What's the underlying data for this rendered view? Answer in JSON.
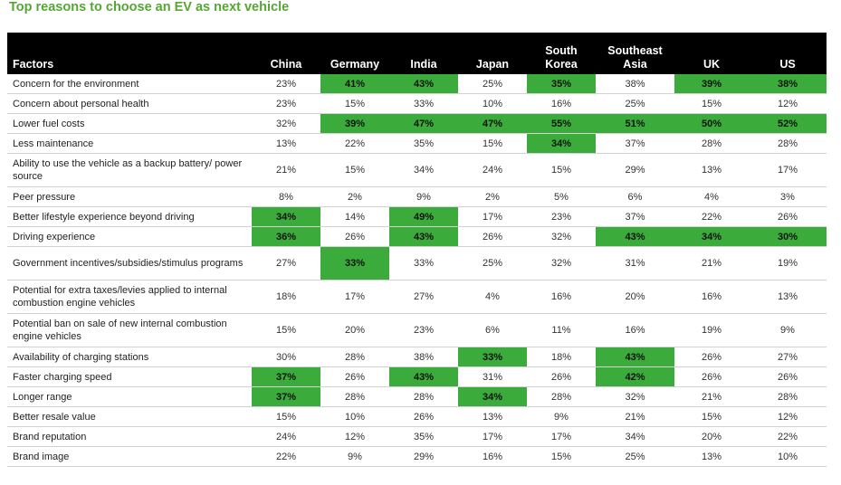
{
  "title": "Top reasons to choose an EV as next vehicle",
  "chart_data": {
    "type": "table",
    "title": "Top reasons to choose an EV as next vehicle",
    "row_header": "Factors",
    "columns": [
      "China",
      "Germany",
      "India",
      "Japan",
      "South Korea",
      "Southeast Asia",
      "UK",
      "US"
    ],
    "column_display": [
      [
        "China"
      ],
      [
        "Germany"
      ],
      [
        "India"
      ],
      [
        "Japan"
      ],
      [
        "South",
        "Korea"
      ],
      [
        "Southeast",
        "Asia"
      ],
      [
        "UK"
      ],
      [
        "US"
      ]
    ],
    "highlight_color": "#3bab3b",
    "rows": [
      {
        "factor": "Concern for the environment",
        "values": [
          "23%",
          "41%",
          "43%",
          "25%",
          "35%",
          "38%",
          "39%",
          "38%"
        ],
        "highlight": [
          false,
          true,
          true,
          false,
          true,
          false,
          true,
          true
        ]
      },
      {
        "factor": "Concern about personal health",
        "values": [
          "23%",
          "15%",
          "33%",
          "10%",
          "16%",
          "25%",
          "15%",
          "12%"
        ],
        "highlight": [
          false,
          false,
          false,
          false,
          false,
          false,
          false,
          false
        ]
      },
      {
        "factor": "Lower fuel costs",
        "values": [
          "32%",
          "39%",
          "47%",
          "47%",
          "55%",
          "51%",
          "50%",
          "52%"
        ],
        "highlight": [
          false,
          true,
          true,
          true,
          true,
          true,
          true,
          true
        ]
      },
      {
        "factor": "Less maintenance",
        "values": [
          "13%",
          "22%",
          "35%",
          "15%",
          "34%",
          "37%",
          "28%",
          "28%"
        ],
        "highlight": [
          false,
          false,
          false,
          false,
          true,
          false,
          false,
          false
        ]
      },
      {
        "factor": "Ability to use the vehicle as a backup battery/ power source",
        "values": [
          "21%",
          "15%",
          "34%",
          "24%",
          "15%",
          "29%",
          "13%",
          "17%"
        ],
        "highlight": [
          false,
          false,
          false,
          false,
          false,
          false,
          false,
          false
        ]
      },
      {
        "factor": "Peer pressure",
        "values": [
          "8%",
          "2%",
          "9%",
          "2%",
          "5%",
          "6%",
          "4%",
          "3%"
        ],
        "highlight": [
          false,
          false,
          false,
          false,
          false,
          false,
          false,
          false
        ]
      },
      {
        "factor": "Better lifestyle experience beyond driving",
        "values": [
          "34%",
          "14%",
          "49%",
          "17%",
          "23%",
          "37%",
          "22%",
          "26%"
        ],
        "highlight": [
          true,
          false,
          true,
          false,
          false,
          false,
          false,
          false
        ]
      },
      {
        "factor": "Driving experience",
        "values": [
          "36%",
          "26%",
          "43%",
          "26%",
          "32%",
          "43%",
          "34%",
          "30%"
        ],
        "highlight": [
          true,
          false,
          true,
          false,
          false,
          true,
          true,
          true
        ]
      },
      {
        "factor": "Government incentives/subsidies/stimulus programs",
        "values": [
          "27%",
          "33%",
          "33%",
          "25%",
          "32%",
          "31%",
          "21%",
          "19%"
        ],
        "highlight": [
          false,
          true,
          false,
          false,
          false,
          false,
          false,
          false
        ]
      },
      {
        "factor": "Potential for extra taxes/levies applied to internal combustion engine vehicles",
        "values": [
          "18%",
          "17%",
          "27%",
          "4%",
          "16%",
          "20%",
          "16%",
          "13%"
        ],
        "highlight": [
          false,
          false,
          false,
          false,
          false,
          false,
          false,
          false
        ]
      },
      {
        "factor": "Potential ban on sale of new internal combustion engine vehicles",
        "values": [
          "15%",
          "20%",
          "23%",
          "6%",
          "11%",
          "16%",
          "19%",
          "9%"
        ],
        "highlight": [
          false,
          false,
          false,
          false,
          false,
          false,
          false,
          false
        ]
      },
      {
        "factor": "Availability of charging stations",
        "values": [
          "30%",
          "28%",
          "38%",
          "33%",
          "18%",
          "43%",
          "26%",
          "27%"
        ],
        "highlight": [
          false,
          false,
          false,
          true,
          false,
          true,
          false,
          false
        ]
      },
      {
        "factor": "Faster charging speed",
        "values": [
          "37%",
          "26%",
          "43%",
          "31%",
          "26%",
          "42%",
          "26%",
          "26%"
        ],
        "highlight": [
          true,
          false,
          true,
          false,
          false,
          true,
          false,
          false
        ]
      },
      {
        "factor": "Longer range",
        "values": [
          "37%",
          "28%",
          "28%",
          "34%",
          "28%",
          "32%",
          "21%",
          "28%"
        ],
        "highlight": [
          true,
          false,
          false,
          true,
          false,
          false,
          false,
          false
        ]
      },
      {
        "factor": "Better resale value",
        "values": [
          "15%",
          "10%",
          "26%",
          "13%",
          "9%",
          "21%",
          "15%",
          "12%"
        ],
        "highlight": [
          false,
          false,
          false,
          false,
          false,
          false,
          false,
          false
        ]
      },
      {
        "factor": "Brand reputation",
        "values": [
          "24%",
          "12%",
          "35%",
          "17%",
          "17%",
          "34%",
          "20%",
          "22%"
        ],
        "highlight": [
          false,
          false,
          false,
          false,
          false,
          false,
          false,
          false
        ]
      },
      {
        "factor": "Brand image",
        "values": [
          "22%",
          "9%",
          "29%",
          "16%",
          "15%",
          "25%",
          "13%",
          "10%"
        ],
        "highlight": [
          false,
          false,
          false,
          false,
          false,
          false,
          false,
          false
        ]
      }
    ]
  }
}
